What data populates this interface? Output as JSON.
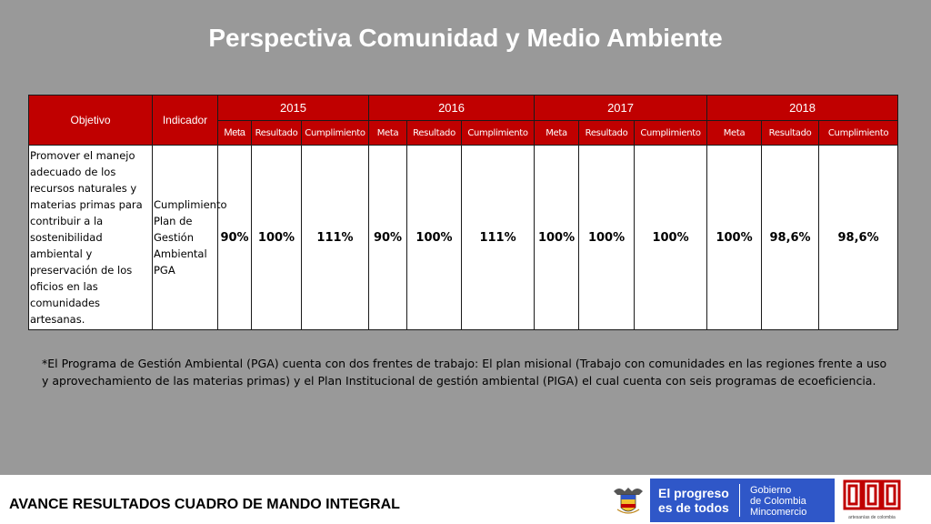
{
  "title": "Perspectiva Comunidad y Medio Ambiente",
  "table": {
    "col_objetivo": "Objetivo",
    "col_indicador": "Indicador",
    "years": [
      "2015",
      "2016",
      "2017",
      "2018"
    ],
    "subheaders": [
      "Meta",
      "Resultado",
      "Cumplimiento"
    ],
    "row": {
      "objetivo": "Promover el manejo adecuado de los recursos naturales y materias primas para contribuir a la sostenibilidad ambiental y preservación de los oficios en las comunidades artesanas.",
      "indicador": "Cumplimiento Plan de Gestión Ambiental PGA",
      "values": [
        {
          "meta": "90%",
          "resultado": "100%",
          "cumplimiento": "111%"
        },
        {
          "meta": "90%",
          "resultado": "100%",
          "cumplimiento": "111%"
        },
        {
          "meta": "100%",
          "resultado": "100%",
          "cumplimiento": "100%"
        },
        {
          "meta": "100%",
          "resultado": "98,6%",
          "cumplimiento": "98,6%"
        }
      ]
    }
  },
  "note": "*El Programa de Gestión Ambiental (PGA) cuenta con dos frentes de trabajo: El plan misional (Trabajo con comunidades en las regiones frente a uso y aprovechamiento de las materias primas) y el Plan Institucional de gestión ambiental (PIGA) el cual cuenta con seis programas de ecoeficiencia.",
  "footer": {
    "label": "AVANCE RESULTADOS CUADRO DE MANDO INTEGRAL",
    "logo_progreso_line1": "El progreso",
    "logo_progreso_line2": "es de todos",
    "logo_gob_line1": "Gobierno",
    "logo_gob_line2": "de Colombia",
    "logo_gob_line3": "Mincomercio",
    "logo_artesanias": "artesanías de colombia"
  },
  "colors": {
    "background": "#999999",
    "header_red": "#c00000",
    "gov_blue": "#2f57c8",
    "artesanias_red": "#c00000"
  }
}
